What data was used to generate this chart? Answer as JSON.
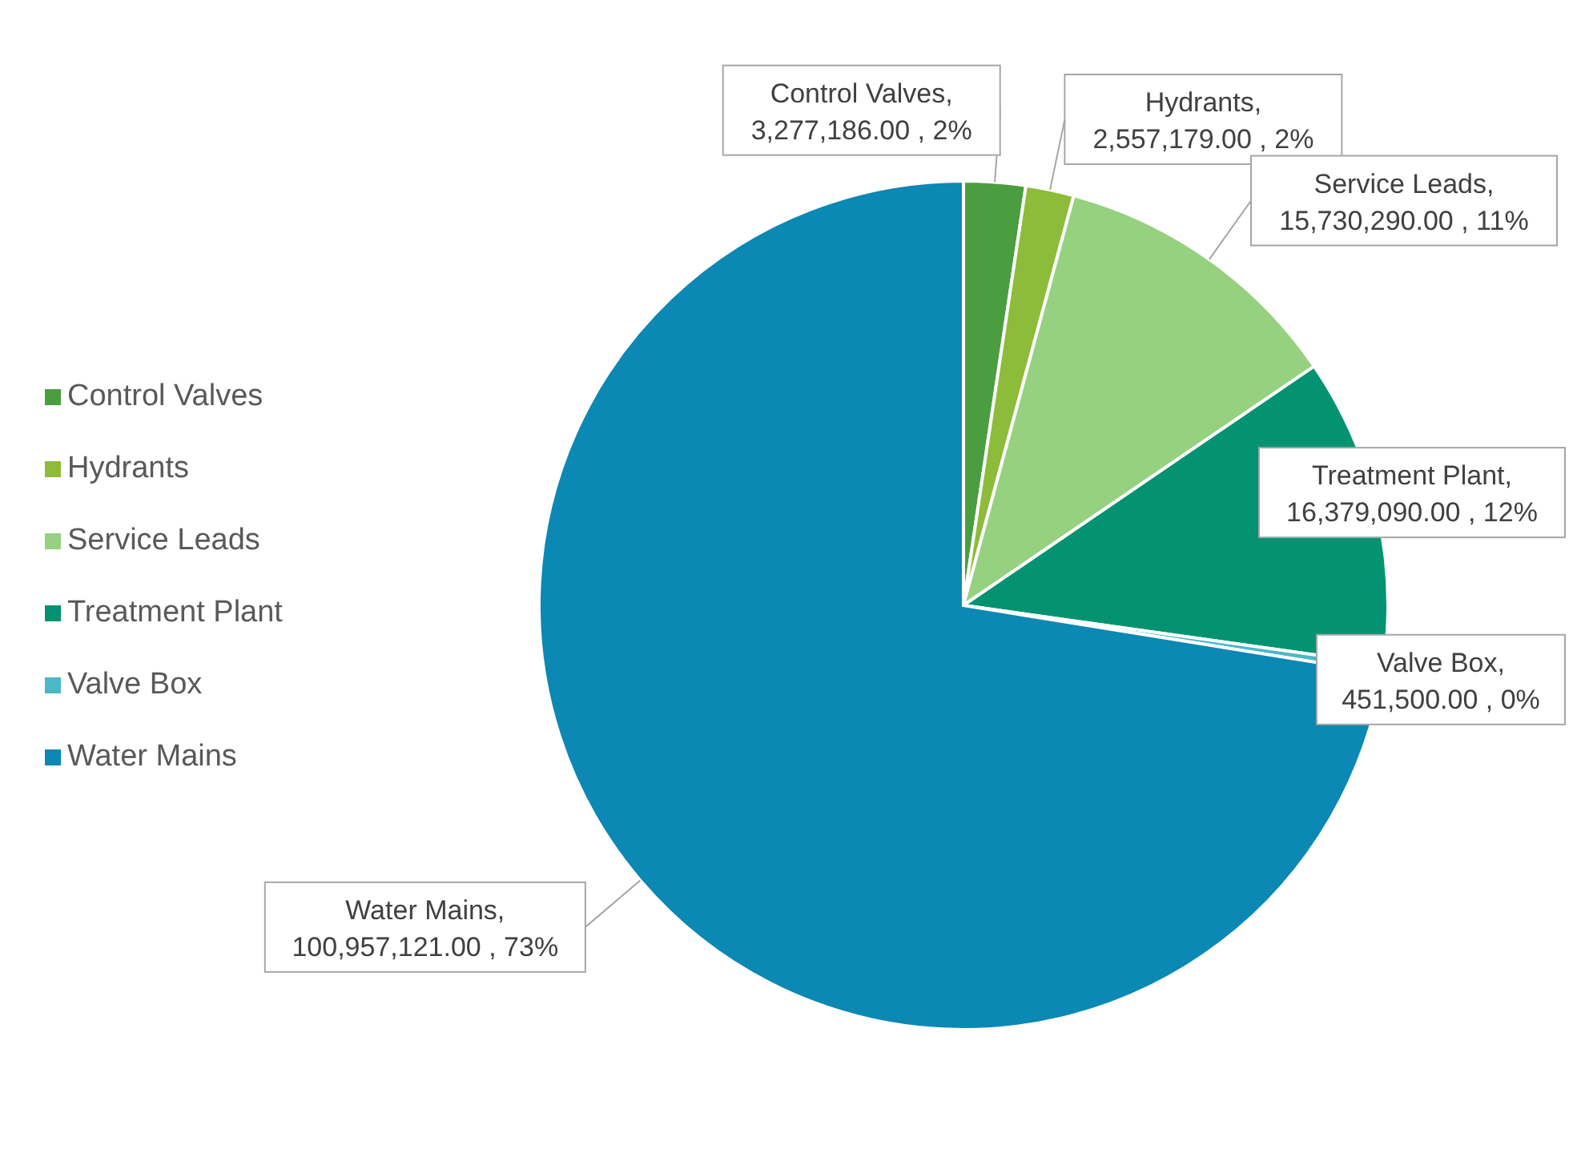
{
  "chart_data": {
    "type": "pie",
    "categories": [
      "Control Valves",
      "Hydrants",
      "Service Leads",
      "Treatment Plant",
      "Valve Box",
      "Water Mains"
    ],
    "values": [
      3277186.0,
      2557179.0,
      15730290.0,
      16379090.0,
      451500.0,
      100957121.0
    ],
    "colors": [
      "#4a9e3f",
      "#8dbb3a",
      "#95d17f",
      "#039370",
      "#4bb8c7",
      "#0b88b3"
    ],
    "value_labels": [
      "Control Valves, 3,277,186.00 , 2%",
      "Hydrants, 2,557,179.00 , 2%",
      "Service Leads, 15,730,290.00 , 11%",
      "Treatment Plant, 16,379,090.00 , 12%",
      "Valve Box, 451,500.00 , 0%",
      "Water Mains, 100,957,121.00 , 73%"
    ],
    "legend": "left"
  }
}
